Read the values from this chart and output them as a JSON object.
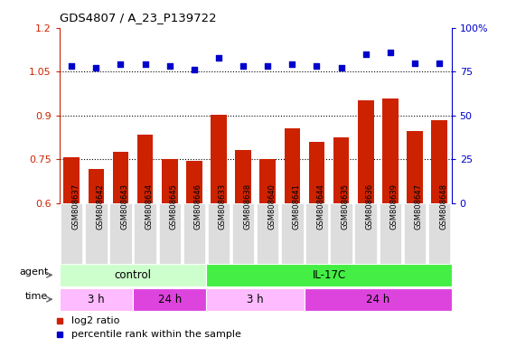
{
  "title": "GDS4807 / A_23_P139722",
  "samples": [
    "GSM808637",
    "GSM808642",
    "GSM808643",
    "GSM808634",
    "GSM808645",
    "GSM808646",
    "GSM808633",
    "GSM808638",
    "GSM808640",
    "GSM808641",
    "GSM808644",
    "GSM808635",
    "GSM808636",
    "GSM808639",
    "GSM808647",
    "GSM808648"
  ],
  "log2_ratio": [
    0.757,
    0.715,
    0.775,
    0.835,
    0.752,
    0.743,
    0.902,
    0.782,
    0.752,
    0.855,
    0.808,
    0.825,
    0.952,
    0.958,
    0.845,
    0.882
  ],
  "percentile_rank": [
    78,
    77,
    79,
    79,
    78,
    76,
    83,
    78,
    78,
    79,
    78,
    77,
    85,
    86,
    80,
    80
  ],
  "ylim_left": [
    0.6,
    1.2
  ],
  "ylim_right": [
    0,
    100
  ],
  "yticks_left": [
    0.6,
    0.75,
    0.9,
    1.05,
    1.2
  ],
  "yticks_right": [
    0,
    25,
    50,
    75,
    100
  ],
  "hlines": [
    0.75,
    0.9,
    1.05
  ],
  "bar_color": "#cc2200",
  "dot_color": "#0000cc",
  "bar_width": 0.65,
  "agent_groups": [
    {
      "label": "control",
      "start": 0,
      "end": 6,
      "color": "#ccffcc"
    },
    {
      "label": "IL-17C",
      "start": 6,
      "end": 16,
      "color": "#44ee44"
    }
  ],
  "time_groups": [
    {
      "label": "3 h",
      "start": 0,
      "end": 3,
      "color": "#ffbbff"
    },
    {
      "label": "24 h",
      "start": 3,
      "end": 6,
      "color": "#dd44dd"
    },
    {
      "label": "3 h",
      "start": 6,
      "end": 10,
      "color": "#ffbbff"
    },
    {
      "label": "24 h",
      "start": 10,
      "end": 16,
      "color": "#dd44dd"
    }
  ],
  "legend_items": [
    {
      "label": "log2 ratio",
      "color": "#cc2200"
    },
    {
      "label": "percentile rank within the sample",
      "color": "#0000cc"
    }
  ],
  "left_axis_color": "#cc2200",
  "right_axis_color": "#0000cc",
  "tick_bg_color": "#dddddd"
}
